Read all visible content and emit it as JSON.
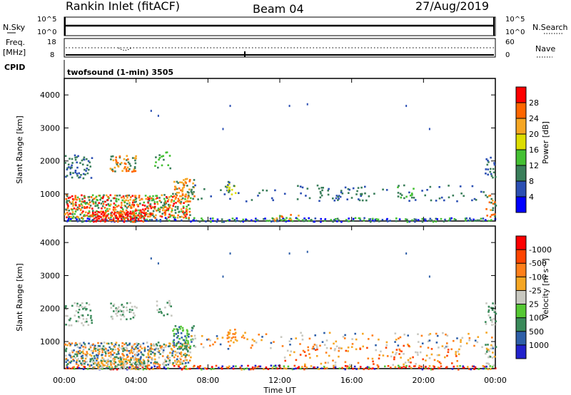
{
  "header": {
    "station": "Rankin Inlet (fitACF)",
    "beam": "Beam 04",
    "date": "27/Aug/2019"
  },
  "status_panels": {
    "nsky_label": "N.Sky",
    "nsky_ticks": [
      "10^5",
      "10^0"
    ],
    "nsearch_label": "N.Search",
    "nsearch_ticks": [
      "10^5",
      "10^0"
    ],
    "freq_label": "Freq.",
    "freq_unit": "[MHz]",
    "freq_ticks": [
      "18",
      "8"
    ],
    "nave_label": "Nave",
    "nave_ticks": [
      "60",
      "0"
    ],
    "cpid_label": "CPID",
    "cpid_text": "twofsound (1-min) 3505"
  },
  "chart_data": [
    {
      "type": "heatmap",
      "name": "power",
      "ylabel": "Slant Range [km]",
      "xlabel": "Time UT",
      "xlim_hours": [
        0,
        24
      ],
      "ylim": [
        180,
        4500
      ],
      "x_ticks": [
        "00:00",
        "04:00",
        "08:00",
        "12:00",
        "16:00",
        "20:00",
        "00:00"
      ],
      "y_ticks": [
        1000,
        2000,
        3000,
        4000
      ],
      "colorbar": {
        "label": "Power [dB]",
        "ticks": [
          "4",
          "8",
          "12",
          "16",
          "20",
          "24",
          "28"
        ],
        "colors": [
          "#0000ff",
          "#2b4fb3",
          "#3a7e5a",
          "#44c033",
          "#dddd00",
          "#f5a623",
          "#ff6600",
          "#ff0000"
        ]
      }
    },
    {
      "type": "heatmap",
      "name": "velocity",
      "ylabel": "Slant Range [km]",
      "xlabel": "Time UT",
      "xlim_hours": [
        0,
        24
      ],
      "ylim": [
        180,
        4500
      ],
      "x_ticks": [
        "00:00",
        "04:00",
        "08:00",
        "12:00",
        "16:00",
        "20:00",
        "00:00"
      ],
      "y_ticks": [
        1000,
        2000,
        3000,
        4000
      ],
      "colorbar": {
        "label": "Velocity [m s⁻¹]",
        "ticks": [
          "1000",
          "500",
          "100",
          "25",
          "-25",
          "-100",
          "-500",
          "-1000"
        ],
        "colors": [
          "#2222cc",
          "#2e5fa8",
          "#3a8a5a",
          "#55c833",
          "#c8c8c0",
          "#f5a623",
          "#ff7f1a",
          "#ff4400",
          "#ff0000"
        ]
      }
    }
  ]
}
